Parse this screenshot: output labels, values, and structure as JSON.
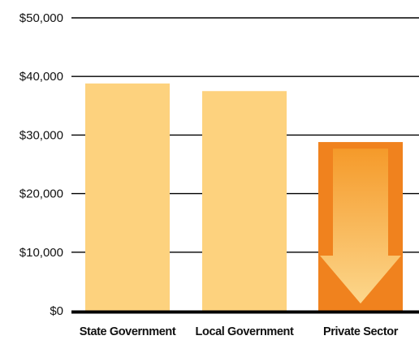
{
  "chart_data": {
    "type": "bar",
    "categories": [
      "State Government",
      "Local Government",
      "Private Sector"
    ],
    "values": [
      38800,
      37500,
      28800
    ],
    "ylim": [
      0,
      50000
    ],
    "yticks": [
      0,
      10000,
      20000,
      30000,
      40000,
      50000
    ],
    "ytick_labels": [
      "$0",
      "$10,000",
      "$20,000",
      "$30,000",
      "$40,000",
      "$50,000"
    ],
    "grid": true,
    "annotation": "downward arrow on Private Sector bar",
    "colors": {
      "bar": "#FDD27E",
      "highlight_bar": "#F0821E",
      "arrow_top": "#F59A2A",
      "arrow_bottom": "#FCD78C",
      "axis": "#000000",
      "grid": "#000000"
    }
  }
}
